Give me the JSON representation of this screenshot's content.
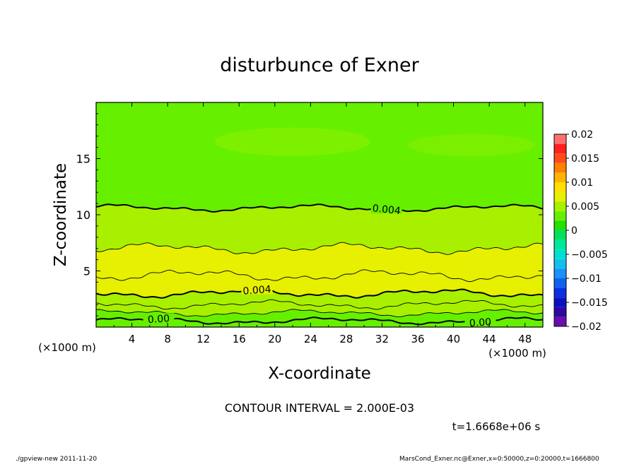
{
  "chart_data": {
    "type": "heatmap",
    "title": "disturbunce of Exner",
    "xlabel": "X-coordinate",
    "ylabel": "Z-coordinate",
    "x_unit": "(×1000 m)",
    "y_unit": "(×1000 m)",
    "xlim": [
      0,
      50
    ],
    "ylim": [
      0,
      20
    ],
    "x_ticks": [
      "4",
      "8",
      "12",
      "16",
      "20",
      "24",
      "28",
      "32",
      "36",
      "40",
      "44",
      "48"
    ],
    "y_ticks": [
      "5",
      "10",
      "15"
    ],
    "colorbar": {
      "ticks": [
        "0.02",
        "0.015",
        "0.01",
        "0.005",
        "0",
        "−0.005",
        "−0.01",
        "−0.015",
        "−0.02"
      ],
      "levels": [
        -0.02,
        -0.018,
        -0.016,
        -0.014,
        -0.012,
        -0.01,
        -0.008,
        -0.006,
        -0.004,
        -0.002,
        0,
        0.002,
        0.004,
        0.006,
        0.008,
        0.01,
        0.012,
        0.014,
        0.016,
        0.018,
        0.02
      ],
      "colors": [
        "#6a0dad",
        "#2a0aa0",
        "#0a10c0",
        "#0a2ee0",
        "#1060f0",
        "#1a90f8",
        "#10c0f0",
        "#00e0d0",
        "#00e89a",
        "#00e060",
        "#22e000",
        "#66f000",
        "#a8f000",
        "#e6f000",
        "#ffe000",
        "#ffb400",
        "#ff8000",
        "#ff4a1a",
        "#ff2020",
        "#ff7070"
      ]
    },
    "contour_labels": [
      "0.004",
      "0.004",
      "0.00",
      "0.00"
    ],
    "contour_interval": "CONTOUR INTERVAL = 2.000E-03",
    "time_label": "t=1.6668e+06 s"
  },
  "footer": {
    "left": "./gpview-new   2011-11-20",
    "right": "MarsCond_Exner.nc@Exner,x=0:50000,z=0:20000,t=1666800"
  }
}
